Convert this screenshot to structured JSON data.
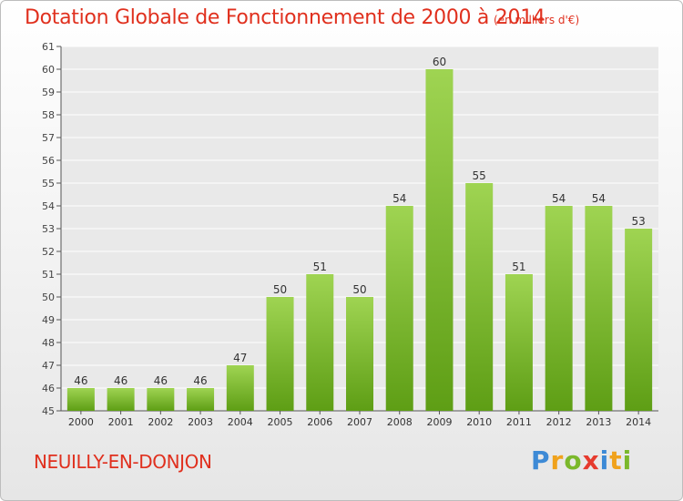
{
  "title": "Dotation Globale de Fonctionnement de 2000 à 2014",
  "subtitle": "(en milliers d'€)",
  "commune": "NEUILLY-EN-DONJON",
  "logo": {
    "letters": [
      "P",
      "r",
      "o",
      "x",
      "i",
      "t",
      "i"
    ],
    "colors": [
      "#3d8ad6",
      "#f0a21c",
      "#7bb82b",
      "#e63b2e",
      "#3d8ad6",
      "#f0a21c",
      "#7bb82b"
    ]
  },
  "colors": {
    "bar_top": "#9fd452",
    "bar_bottom": "#5e9e15",
    "title": "#e0301e",
    "grid": "#ffffff"
  },
  "chart_data": {
    "type": "bar",
    "title": "Dotation Globale de Fonctionnement de 2000 à 2014",
    "subtitle": "(en milliers d'€)",
    "categories": [
      "2000",
      "2001",
      "2002",
      "2003",
      "2004",
      "2005",
      "2006",
      "2007",
      "2008",
      "2009",
      "2010",
      "2011",
      "2012",
      "2013",
      "2014"
    ],
    "values": [
      46,
      46,
      46,
      46,
      47,
      50,
      51,
      50,
      54,
      60,
      55,
      51,
      54,
      54,
      53
    ],
    "ylim": [
      45,
      61
    ],
    "yticks": [
      45,
      46,
      47,
      48,
      49,
      50,
      51,
      52,
      53,
      54,
      55,
      56,
      57,
      58,
      59,
      60,
      61
    ],
    "grid": true,
    "xlabel": "",
    "ylabel": ""
  }
}
